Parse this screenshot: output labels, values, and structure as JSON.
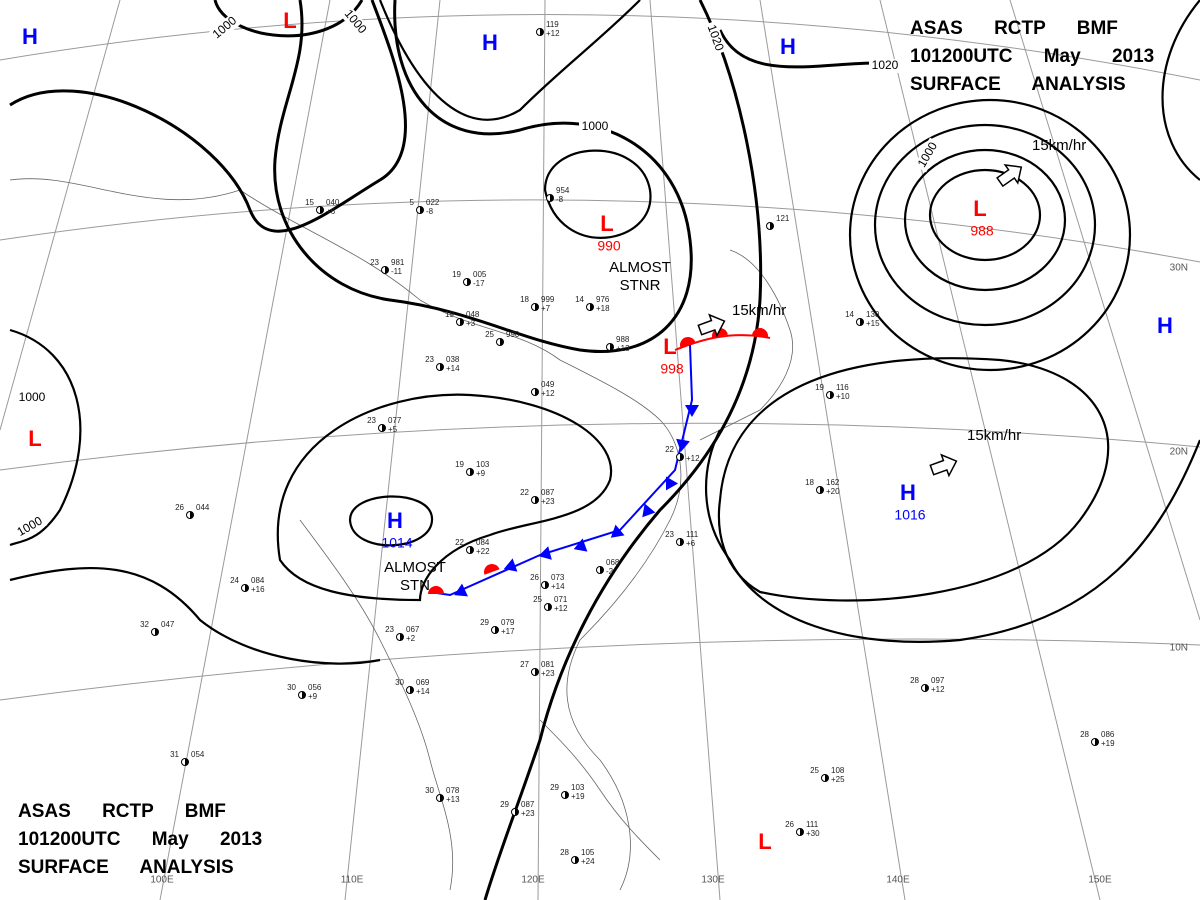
{
  "title_blocks": [
    {
      "lines": [
        "ASAS RCTP BMF",
        "101200UTC May 2013",
        "SURFACE ANALYSIS"
      ]
    },
    {
      "lines": [
        "ASAS RCTP BMF",
        "101200UTC May 2013",
        "SURFACE ANALYSIS"
      ]
    }
  ],
  "symbol_colors": {
    "H": "#0000ff",
    "L": "#ff0000"
  },
  "centers": [
    {
      "symbol": "H"
    },
    {
      "symbol": "L"
    },
    {
      "symbol": "H"
    },
    {
      "symbol": "H"
    },
    {
      "symbol": "L",
      "value": "990"
    },
    {
      "symbol": "L",
      "value": "988"
    },
    {
      "symbol": "H"
    },
    {
      "symbol": "L",
      "value": "998"
    },
    {
      "symbol": "L"
    },
    {
      "symbol": "H",
      "value": "1014"
    },
    {
      "symbol": "H",
      "value": "1016"
    },
    {
      "symbol": "L"
    }
  ],
  "isobar_labels": [
    "1000",
    "1000",
    "1020",
    "1020",
    "1000",
    "1000",
    "1000",
    "1000"
  ],
  "annotations": [
    [
      "ALMOST",
      "STNR"
    ],
    [
      "ALMOST",
      "STN"
    ]
  ],
  "motions": [
    "15km/hr",
    "15km/hr",
    "15km/hr"
  ],
  "latitudes": [
    "30N",
    "20N",
    "10N"
  ],
  "longitudes": [
    "100E",
    "110E",
    "120E",
    "130E",
    "140E",
    "150E"
  ],
  "stations": [
    {
      "p": "119",
      "d": "+12"
    },
    {
      "p": "954",
      "d": "-8"
    },
    {
      "p": "049",
      "d": "+12"
    },
    {
      "t": "23",
      "p": "077",
      "d": "+5"
    },
    {
      "t": "19",
      "p": "103",
      "d": "+9"
    },
    {
      "t": "22",
      "p": "087",
      "d": "+23"
    },
    {
      "t": "22",
      "p": "084",
      "d": "+22"
    },
    {
      "t": "26",
      "p": "073",
      "d": "+14"
    },
    {
      "t": "25",
      "p": "071",
      "d": "+12"
    },
    {
      "p": "068",
      "d": "-2"
    },
    {
      "t": "23",
      "p": "067",
      "d": "+2"
    },
    {
      "t": "29",
      "p": "079",
      "d": "+17"
    },
    {
      "t": "27",
      "p": "081",
      "d": "+23"
    },
    {
      "t": "30",
      "p": "069",
      "d": "+14"
    },
    {
      "t": "30",
      "p": "056",
      "d": "+9"
    },
    {
      "t": "31",
      "p": "054"
    },
    {
      "t": "30",
      "p": "078",
      "d": "+13"
    },
    {
      "t": "29",
      "p": "087",
      "d": "+23"
    },
    {
      "t": "29",
      "p": "103",
      "d": "+19"
    },
    {
      "t": "28",
      "p": "105",
      "d": "+24"
    },
    {
      "t": "26",
      "p": "111",
      "d": "+30"
    },
    {
      "t": "25",
      "p": "108",
      "d": "+25"
    },
    {
      "t": "18",
      "p": "162",
      "d": "+20"
    },
    {
      "t": "19",
      "p": "116",
      "d": "+10"
    },
    {
      "t": "28",
      "p": "097",
      "d": "+12"
    },
    {
      "t": "28",
      "p": "086",
      "d": "+19"
    },
    {
      "t": "22",
      "d": "+12"
    },
    {
      "p": "988",
      "d": "+13"
    },
    {
      "t": "25",
      "p": "990"
    },
    {
      "t": "23",
      "p": "038",
      "d": "+14"
    },
    {
      "t": "19",
      "p": "048",
      "d": "+3"
    },
    {
      "t": "18",
      "p": "999",
      "d": "+7"
    },
    {
      "t": "14",
      "p": "976",
      "d": "+18"
    },
    {
      "t": "19",
      "p": "005",
      "d": "-17"
    },
    {
      "t": "23",
      "p": "981",
      "d": "-11"
    },
    {
      "t": "5",
      "p": "022",
      "d": "-8"
    },
    {
      "t": "15",
      "p": "040",
      "d": "+6"
    },
    {
      "t": "26",
      "p": "044"
    },
    {
      "t": "32",
      "p": "047"
    },
    {
      "t": "24",
      "p": "084",
      "d": "+16"
    },
    {
      "t": "23",
      "p": "111",
      "d": "+6"
    },
    {
      "p": "121"
    },
    {
      "t": "14",
      "p": "130",
      "d": "+15"
    }
  ]
}
